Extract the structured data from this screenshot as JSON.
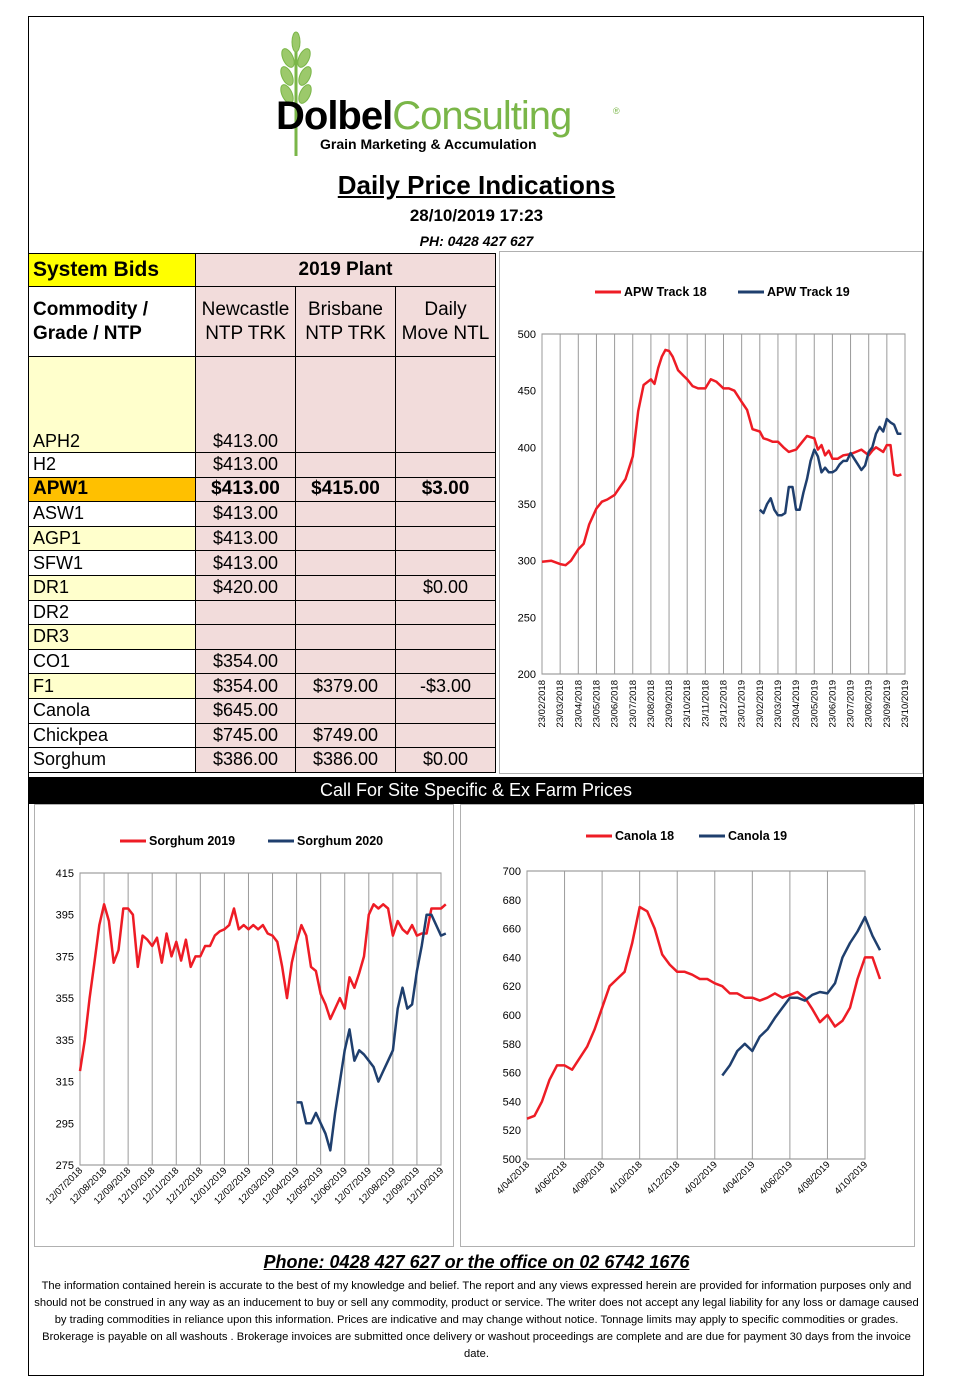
{
  "logo": {
    "brand_dark": "Dolbel",
    "brand_green": "Consulting",
    "registered": "®",
    "tagline": "Grain Marketing & Accumulation"
  },
  "header": {
    "title": "Daily Price Indications",
    "datetime": "28/10/2019 17:23",
    "phone": "PH: 0428 427 627"
  },
  "table": {
    "system_bids": "System Bids",
    "plant_label": "2019 Plant",
    "col_commodity": "Commodity / Grade / NTP",
    "col_newcastle": "Newcastle NTP TRK",
    "col_brisbane": "Brisbane NTP TRK",
    "col_move": "Daily Move NTL",
    "rows": [
      {
        "grade": "APH2",
        "newcastle": "$413.00",
        "brisbane": "",
        "move": ""
      },
      {
        "grade": "H2",
        "newcastle": "$413.00",
        "brisbane": "",
        "move": ""
      },
      {
        "grade": "APW1",
        "newcastle": "$413.00",
        "brisbane": "$415.00",
        "move": "$3.00"
      },
      {
        "grade": "ASW1",
        "newcastle": "$413.00",
        "brisbane": "",
        "move": ""
      },
      {
        "grade": "AGP1",
        "newcastle": "$413.00",
        "brisbane": "",
        "move": ""
      },
      {
        "grade": "SFW1",
        "newcastle": "$413.00",
        "brisbane": "",
        "move": ""
      },
      {
        "grade": "DR1",
        "newcastle": "$420.00",
        "brisbane": "",
        "move": "$0.00"
      },
      {
        "grade": "DR2",
        "newcastle": "",
        "brisbane": "",
        "move": ""
      },
      {
        "grade": "DR3",
        "newcastle": "",
        "brisbane": "",
        "move": ""
      },
      {
        "grade": "CO1",
        "newcastle": "$354.00",
        "brisbane": "",
        "move": ""
      },
      {
        "grade": "F1",
        "newcastle": "$354.00",
        "brisbane": "$379.00",
        "move": "-$3.00"
      },
      {
        "grade": "Canola",
        "newcastle": "$645.00",
        "brisbane": "",
        "move": ""
      },
      {
        "grade": "Chickpea",
        "newcastle": "$745.00",
        "brisbane": "$749.00",
        "move": ""
      },
      {
        "grade": "Sorghum",
        "newcastle": "$386.00",
        "brisbane": "$386.00",
        "move": "$0.00"
      }
    ]
  },
  "banner": "Call For Site Specific & Ex Farm Prices",
  "footer": {
    "phone": "Phone: 0428 427 627 or the office on 02 6742 1676",
    "disclaimer": "The information contained herein is accurate to the best of my knowledge and belief.  The report and any views expressed herein are provided for information purposes only and should not be construed in any way as an inducement to buy or sell any commodity, product or service. The writer does not accept any legal liability for any loss or damage caused by trading commodities in reliance upon this information. Prices are indicative and may change without notice. Tonnage limits may apply to specific commodities or grades.  Brokerage is payable on all washouts . Brokerage invoices are submitted once delivery or washout proceedings are complete and are due for payment 30 days from the invoice date."
  },
  "colors": {
    "red": "#ee1c25",
    "blue": "#1f3f6e",
    "yellow": "#ffff00",
    "orange": "#ffc000",
    "pink": "#f2dcdb",
    "cream": "#ffffcc",
    "green": "#7ab648"
  },
  "chart_data": [
    {
      "type": "line",
      "legend_position": "top",
      "ylim": [
        200,
        500
      ],
      "yticks": [
        200,
        250,
        300,
        350,
        400,
        450,
        500
      ],
      "x_tick_labels": [
        "23/02/2018",
        "23/03/2018",
        "23/04/2018",
        "23/05/2018",
        "23/06/2018",
        "23/07/2018",
        "23/08/2018",
        "23/09/2018",
        "23/10/2018",
        "23/11/2018",
        "23/12/2018",
        "23/01/2019",
        "23/02/2019",
        "23/03/2019",
        "23/04/2019",
        "23/05/2019",
        "23/06/2019",
        "23/07/2019",
        "23/08/2019",
        "23/09/2019",
        "23/10/2019"
      ],
      "series": [
        {
          "name": "APW Track 18",
          "color": "#ee1c25",
          "x": [
            0,
            0.5,
            1,
            1.3,
            1.6,
            2,
            2.3,
            2.6,
            3,
            3.3,
            3.6,
            4,
            4.3,
            4.6,
            5,
            5.3,
            5.6,
            6,
            6.2,
            6.4,
            6.6,
            6.8,
            7,
            7.2,
            7.5,
            7.8,
            8,
            8.3,
            8.6,
            9,
            9.3,
            9.6,
            10,
            10.3,
            10.6,
            11,
            11.3,
            11.6,
            12,
            12.2,
            12.4,
            12.7,
            13,
            13.3,
            13.6,
            14,
            14.3,
            14.6,
            15,
            15.2,
            15.4,
            15.6,
            15.8,
            16,
            16.3,
            16.6,
            17,
            17.3,
            17.6,
            18,
            18.2,
            18.4,
            18.6,
            18.8,
            19,
            19.2,
            19.4,
            19.6,
            19.8
          ],
          "y": [
            299,
            300,
            297,
            296,
            300,
            310,
            315,
            332,
            346,
            352,
            354,
            358,
            365,
            372,
            392,
            432,
            455,
            460,
            456,
            470,
            480,
            486,
            485,
            480,
            468,
            463,
            460,
            454,
            452,
            452,
            460,
            458,
            452,
            452,
            450,
            440,
            433,
            416,
            414,
            408,
            407,
            405,
            405,
            400,
            396,
            398,
            404,
            410,
            408,
            398,
            402,
            393,
            397,
            390,
            390,
            393,
            394,
            396,
            398,
            393,
            397,
            400,
            398,
            396,
            402,
            402,
            376,
            375,
            376
          ]
        },
        {
          "name": "APW Track 19",
          "color": "#1f3f6e",
          "x": [
            12,
            12.2,
            12.4,
            12.6,
            12.8,
            13,
            13.2,
            13.4,
            13.6,
            13.8,
            14,
            14.2,
            14.4,
            14.6,
            14.8,
            15,
            15.2,
            15.4,
            15.6,
            15.8,
            16,
            16.2,
            16.4,
            16.6,
            16.8,
            17,
            17.2,
            17.4,
            17.6,
            17.8,
            18,
            18.2,
            18.4,
            18.6,
            18.8,
            19,
            19.2,
            19.4,
            19.6,
            19.8
          ],
          "y": [
            345,
            342,
            350,
            355,
            345,
            340,
            340,
            342,
            365,
            365,
            345,
            345,
            360,
            372,
            388,
            398,
            392,
            378,
            382,
            378,
            378,
            380,
            385,
            388,
            388,
            395,
            390,
            385,
            380,
            384,
            396,
            400,
            412,
            418,
            414,
            425,
            422,
            420,
            412,
            412
          ]
        }
      ]
    },
    {
      "type": "line",
      "legend_position": "top",
      "ylim": [
        275,
        415
      ],
      "yticks": [
        275,
        295,
        315,
        335,
        355,
        375,
        395,
        415
      ],
      "x_tick_labels": [
        "12/07/2018",
        "12/08/2018",
        "12/09/2018",
        "12/10/2018",
        "12/11/2018",
        "12/12/2018",
        "12/01/2019",
        "12/02/2019",
        "12/03/2019",
        "12/04/2019",
        "12/05/2019",
        "12/06/2019",
        "12/07/2019",
        "12/08/2019",
        "12/09/2019",
        "12/10/2019"
      ],
      "series": [
        {
          "name": "Sorghum 2019",
          "color": "#ee1c25",
          "x": [
            0,
            0.2,
            0.4,
            0.6,
            0.8,
            1,
            1.2,
            1.4,
            1.6,
            1.8,
            2,
            2.2,
            2.4,
            2.6,
            2.8,
            3,
            3.2,
            3.4,
            3.6,
            3.8,
            4,
            4.2,
            4.4,
            4.6,
            4.8,
            5,
            5.2,
            5.4,
            5.6,
            5.8,
            6,
            6.2,
            6.4,
            6.6,
            6.8,
            7,
            7.2,
            7.4,
            7.6,
            7.8,
            8,
            8.2,
            8.4,
            8.6,
            8.8,
            9,
            9.2,
            9.4,
            9.6,
            9.8,
            10,
            10.2,
            10.4,
            10.6,
            10.8,
            11,
            11.2,
            11.4,
            11.6,
            11.8,
            12,
            12.2,
            12.4,
            12.6,
            12.8,
            13,
            13.2,
            13.4,
            13.6,
            13.8,
            14,
            14.2,
            14.4,
            14.6,
            14.8,
            15,
            15.2
          ],
          "y": [
            320,
            335,
            355,
            372,
            390,
            400,
            392,
            372,
            378,
            398,
            398,
            395,
            370,
            385,
            383,
            380,
            384,
            372,
            386,
            375,
            382,
            373,
            383,
            370,
            375,
            375,
            380,
            380,
            385,
            387,
            388,
            390,
            398,
            388,
            390,
            388,
            390,
            388,
            390,
            386,
            385,
            382,
            370,
            355,
            372,
            382,
            390,
            385,
            370,
            368,
            357,
            352,
            345,
            350,
            355,
            350,
            365,
            360,
            367,
            375,
            395,
            400,
            398,
            400,
            398,
            385,
            392,
            388,
            386,
            390,
            385,
            386,
            386,
            398,
            398,
            398,
            400
          ]
        },
        {
          "name": "Sorghum 2020",
          "color": "#1f3f6e",
          "x": [
            9,
            9.2,
            9.4,
            9.6,
            9.8,
            10,
            10.2,
            10.4,
            10.6,
            10.8,
            11,
            11.2,
            11.4,
            11.6,
            11.8,
            12,
            12.2,
            12.4,
            12.6,
            12.8,
            13,
            13.2,
            13.4,
            13.6,
            13.8,
            14,
            14.2,
            14.4,
            14.6,
            14.8,
            15,
            15.2
          ],
          "y": [
            305,
            305,
            295,
            295,
            300,
            295,
            290,
            282,
            300,
            315,
            330,
            340,
            325,
            330,
            328,
            325,
            322,
            315,
            320,
            325,
            330,
            350,
            360,
            350,
            352,
            368,
            380,
            395,
            395,
            390,
            385,
            386
          ]
        }
      ]
    },
    {
      "type": "line",
      "legend_position": "top",
      "ylim": [
        500,
        700
      ],
      "yticks": [
        500,
        520,
        540,
        560,
        580,
        600,
        620,
        640,
        660,
        680,
        700
      ],
      "x_tick_labels": [
        "4/04/2018",
        "4/06/2018",
        "4/08/2018",
        "4/10/2018",
        "4/12/2018",
        "4/02/2019",
        "4/04/2019",
        "4/06/2019",
        "4/08/2019",
        "4/10/2019"
      ],
      "series": [
        {
          "name": "Canola 18",
          "color": "#ee1c25",
          "x": [
            0,
            0.2,
            0.4,
            0.6,
            0.8,
            1,
            1.2,
            1.4,
            1.6,
            1.8,
            2,
            2.2,
            2.4,
            2.6,
            2.8,
            3,
            3.2,
            3.4,
            3.6,
            3.8,
            4,
            4.2,
            4.4,
            4.6,
            4.8,
            5,
            5.2,
            5.4,
            5.6,
            5.8,
            6,
            6.2,
            6.4,
            6.6,
            6.8,
            7,
            7.2,
            7.4,
            7.6,
            7.8,
            8,
            8.2,
            8.4,
            8.6,
            8.8,
            9,
            9.2,
            9.4
          ],
          "y": [
            528,
            530,
            540,
            555,
            565,
            565,
            562,
            570,
            578,
            590,
            605,
            620,
            625,
            630,
            650,
            675,
            672,
            660,
            642,
            635,
            630,
            630,
            628,
            625,
            625,
            622,
            620,
            615,
            615,
            612,
            612,
            610,
            612,
            615,
            612,
            614,
            616,
            612,
            604,
            595,
            600,
            592,
            596,
            605,
            625,
            640,
            640,
            625
          ]
        },
        {
          "name": "Canola 19",
          "color": "#1f3f6e",
          "x": [
            5.2,
            5.4,
            5.6,
            5.8,
            6,
            6.2,
            6.4,
            6.6,
            6.8,
            7,
            7.2,
            7.4,
            7.6,
            7.8,
            8,
            8.2,
            8.4,
            8.6,
            8.8,
            9,
            9.2,
            9.4
          ],
          "y": [
            558,
            565,
            575,
            580,
            575,
            585,
            590,
            598,
            605,
            612,
            612,
            610,
            614,
            616,
            615,
            622,
            640,
            650,
            658,
            668,
            655,
            645
          ]
        }
      ]
    }
  ]
}
